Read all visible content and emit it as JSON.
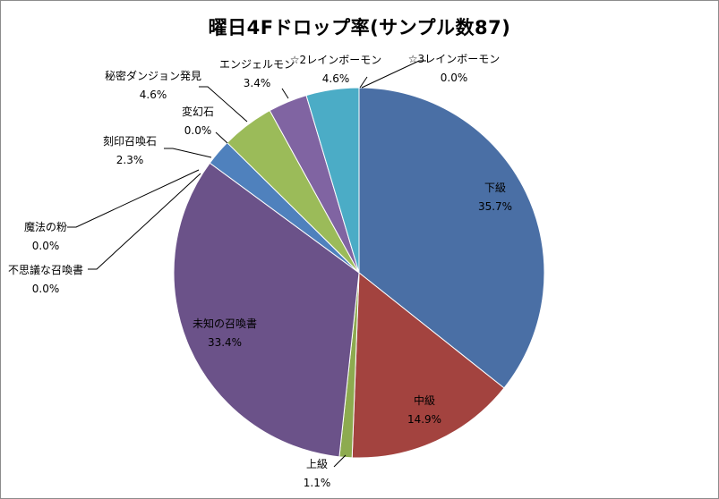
{
  "chart_data": {
    "type": "pie",
    "title": "曜日4Fドロップ率(サンプル数87)",
    "start_angle_deg": 0,
    "direction": "clockwise",
    "slices": [
      {
        "name": "下級",
        "value": 35.7,
        "label_value": "35.7%",
        "color": "#4a6fa5"
      },
      {
        "name": "中級",
        "value": 14.9,
        "label_value": "14.9%",
        "color": "#a3433f"
      },
      {
        "name": "上級",
        "value": 1.1,
        "label_value": "1.1%",
        "color": "#8dab4f"
      },
      {
        "name": "未知の召喚書",
        "value": 33.4,
        "label_value": "33.4%",
        "color": "#6b5289"
      },
      {
        "name": "不思議な召喚書",
        "value": 0.0,
        "label_value": "0.0%",
        "color": "#46a5c0"
      },
      {
        "name": "魔法の粉",
        "value": 0.0,
        "label_value": "0.0%",
        "color": "#e08a35"
      },
      {
        "name": "刻印召喚石",
        "value": 2.3,
        "label_value": "2.3%",
        "color": "#4f81bd"
      },
      {
        "name": "変幻石",
        "value": 0.0,
        "label_value": "0.0%",
        "color": "#c0504d"
      },
      {
        "name": "秘密ダンジョン発見",
        "value": 4.6,
        "label_value": "4.6%",
        "color": "#9bbb59"
      },
      {
        "name": "エンジェルモン",
        "value": 3.4,
        "label_value": "3.4%",
        "color": "#8064a2"
      },
      {
        "name": "☆2レインボーモン",
        "value": 4.6,
        "label_value": "4.6%",
        "color": "#4bacc6"
      },
      {
        "name": "☆3レインボーモン",
        "value": 0.0,
        "label_value": "0.0%",
        "color": "#f79646"
      }
    ]
  }
}
